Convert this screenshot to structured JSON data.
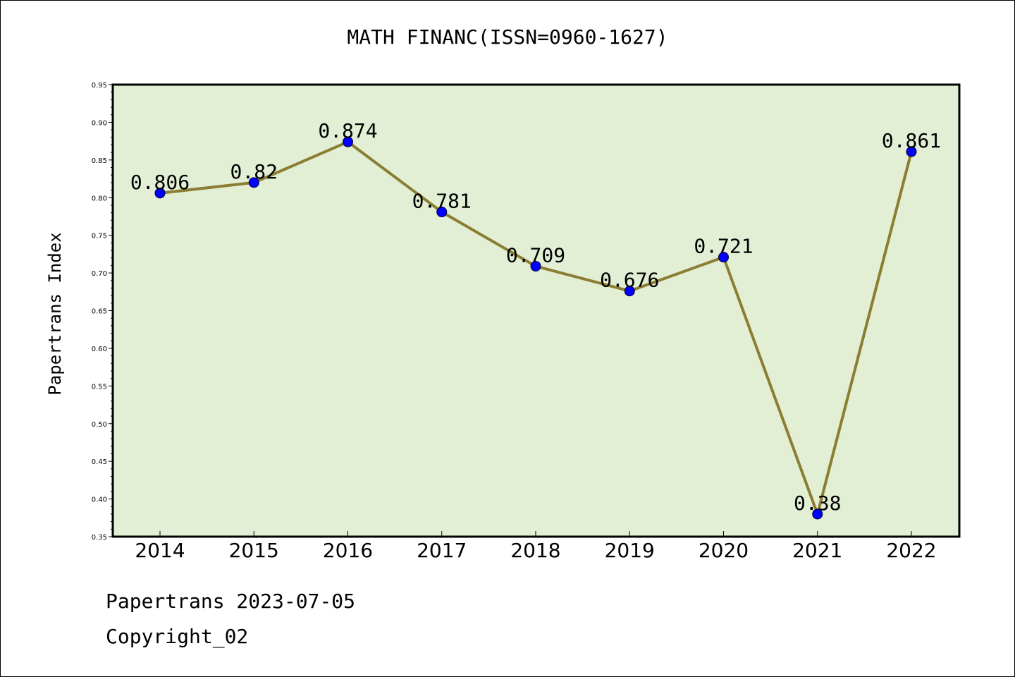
{
  "chart_data": {
    "type": "line",
    "title": "MATH FINANC(ISSN=0960-1627)",
    "xlabel": "",
    "ylabel": "Papertrans Index",
    "categories": [
      "2014",
      "2015",
      "2016",
      "2017",
      "2018",
      "2019",
      "2020",
      "2021",
      "2022"
    ],
    "series": [
      {
        "values": [
          0.806,
          0.82,
          0.874,
          0.781,
          0.709,
          0.676,
          0.721,
          0.38,
          0.861
        ],
        "labels": [
          "0.806",
          "0.82",
          "0.874",
          "0.781",
          "0.709",
          "0.676",
          "0.721",
          "0.38",
          "0.861"
        ]
      }
    ],
    "ylim": [
      0.35,
      0.95
    ],
    "yticks": [
      "0.35",
      "0.40",
      "0.45",
      "0.50",
      "0.55",
      "0.60",
      "0.65",
      "0.70",
      "0.75",
      "0.80",
      "0.85",
      "0.90",
      "0.95"
    ],
    "grid": false,
    "colors": {
      "plot_background": "#e2efd5",
      "line": "#8b7d32",
      "marker": "#0000ff"
    }
  },
  "footer": {
    "line1": "Papertrans 2023-07-05",
    "line2": "Copyright_02"
  }
}
